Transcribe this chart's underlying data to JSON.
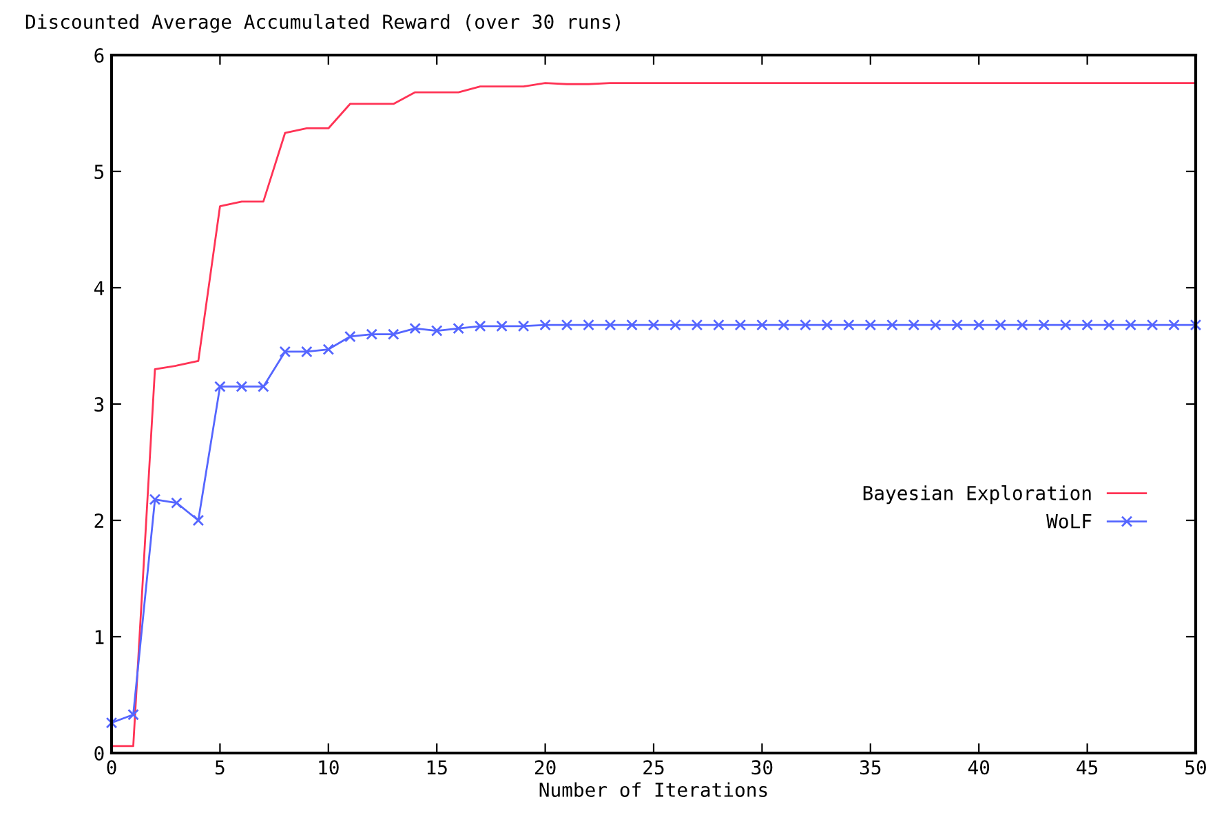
{
  "chart_data": {
    "type": "line",
    "title": "Discounted Average Accumulated Reward (over 30 runs)",
    "xlabel": "Number of Iterations",
    "x": [
      0,
      1,
      2,
      3,
      4,
      5,
      6,
      7,
      8,
      9,
      10,
      11,
      12,
      13,
      14,
      15,
      16,
      17,
      18,
      19,
      20,
      21,
      22,
      23,
      24,
      25,
      26,
      27,
      28,
      29,
      30,
      31,
      32,
      33,
      34,
      35,
      36,
      37,
      38,
      39,
      40,
      41,
      42,
      43,
      44,
      45,
      46,
      47,
      48,
      49,
      50
    ],
    "xlim": [
      0,
      50
    ],
    "xticks": [
      0,
      5,
      10,
      15,
      20,
      25,
      30,
      35,
      40,
      45,
      50
    ],
    "ylim": [
      0,
      6
    ],
    "yticks": [
      0,
      1,
      2,
      3,
      4,
      5,
      6
    ],
    "grid": false,
    "legend": "right",
    "series": [
      {
        "name": "Bayesian Exploration",
        "color": "#ff3355",
        "marker": "none",
        "values": [
          0.06,
          0.06,
          3.3,
          3.33,
          3.37,
          4.7,
          4.74,
          4.74,
          5.33,
          5.37,
          5.37,
          5.58,
          5.58,
          5.58,
          5.68,
          5.68,
          5.68,
          5.73,
          5.73,
          5.73,
          5.76,
          5.75,
          5.75,
          5.76,
          5.76,
          5.76,
          5.76,
          5.76,
          5.76,
          5.76,
          5.76,
          5.76,
          5.76,
          5.76,
          5.76,
          5.76,
          5.76,
          5.76,
          5.76,
          5.76,
          5.76,
          5.76,
          5.76,
          5.76,
          5.76,
          5.76,
          5.76,
          5.76,
          5.76,
          5.76,
          5.76
        ]
      },
      {
        "name": "WoLF",
        "color": "#5566ff",
        "marker": "cross",
        "values": [
          0.26,
          0.33,
          2.18,
          2.15,
          2.0,
          3.15,
          3.15,
          3.15,
          3.45,
          3.45,
          3.47,
          3.58,
          3.6,
          3.6,
          3.65,
          3.63,
          3.65,
          3.67,
          3.67,
          3.67,
          3.68,
          3.68,
          3.68,
          3.68,
          3.68,
          3.68,
          3.68,
          3.68,
          3.68,
          3.68,
          3.68,
          3.68,
          3.68,
          3.68,
          3.68,
          3.68,
          3.68,
          3.68,
          3.68,
          3.68,
          3.68,
          3.68,
          3.68,
          3.68,
          3.68,
          3.68,
          3.68,
          3.68,
          3.68,
          3.68,
          3.68
        ]
      }
    ]
  }
}
